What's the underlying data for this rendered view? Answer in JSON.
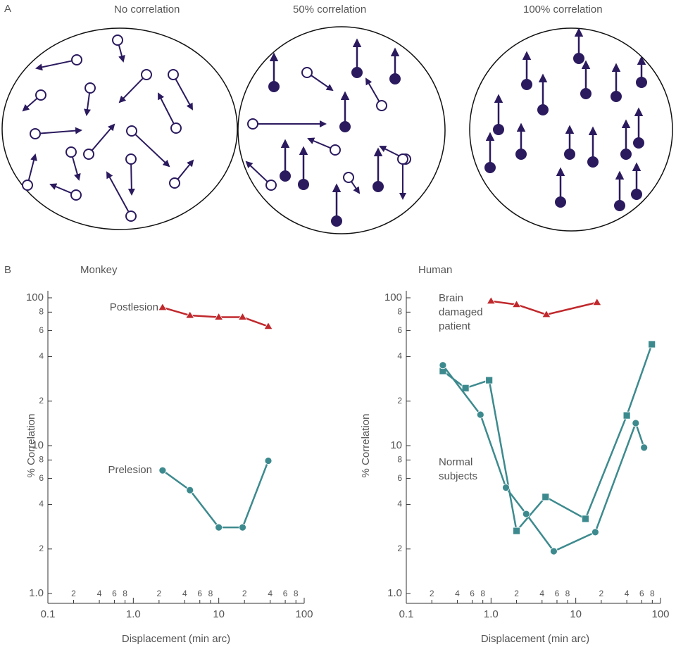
{
  "panel_a": {
    "label": "A",
    "titles": [
      "No correlation",
      "50% correlation",
      "100% correlation"
    ]
  },
  "panel_b": {
    "label": "B"
  },
  "chart_data": [
    {
      "type": "line",
      "title": "Monkey",
      "x_label": "Displacement (min arc)",
      "y_label": "% Correlation",
      "log_x": true,
      "log_y": true,
      "xlim": [
        0.1,
        100
      ],
      "ylim": [
        1,
        100
      ],
      "xticks": [
        0.1,
        {
          "value": 0.2,
          "label": "2"
        },
        {
          "value": 0.4,
          "label": "4"
        },
        {
          "value": 0.6,
          "label": "6"
        },
        {
          "value": 0.8,
          "label": "8"
        },
        {
          "value": 1,
          "label": "1.0"
        },
        2,
        4,
        6,
        8,
        10,
        {
          "value": 20,
          "label": "2"
        },
        {
          "value": 40,
          "label": "4"
        },
        {
          "value": 60,
          "label": "6"
        },
        {
          "value": 80,
          "label": "8"
        },
        100
      ],
      "yticks": [
        {
          "value": 1,
          "label": "1.0"
        },
        2,
        4,
        6,
        8,
        10,
        {
          "value": 20,
          "label": "2"
        },
        {
          "value": 40,
          "label": "4"
        },
        {
          "value": 60,
          "label": "6"
        },
        {
          "value": 80,
          "label": "8"
        },
        100
      ],
      "series": [
        {
          "name": "Postlesion",
          "color": "#c0282c",
          "marker": "triangle",
          "x": [
            2.2,
            4.6,
            10,
            19,
            38
          ],
          "values": [
            86,
            76,
            74,
            74,
            64
          ]
        },
        {
          "name": "Prelesion",
          "color": "#3d8a8e",
          "marker": "circle",
          "x": [
            2.2,
            4.6,
            10,
            19,
            38
          ],
          "values": [
            6.8,
            5.0,
            2.8,
            2.8,
            7.9
          ]
        }
      ]
    },
    {
      "type": "line",
      "title": "Human",
      "x_label": "Displacement (min arc)",
      "y_label": "% Correlation",
      "log_x": true,
      "log_y": true,
      "xlim": [
        0.1,
        100
      ],
      "ylim": [
        1,
        100
      ],
      "xticks": [
        0.1,
        {
          "value": 0.2,
          "label": "2"
        },
        {
          "value": 0.4,
          "label": "4"
        },
        {
          "value": 0.6,
          "label": "6"
        },
        {
          "value": 0.8,
          "label": "8"
        },
        {
          "value": 1,
          "label": "1.0"
        },
        2,
        4,
        6,
        8,
        10,
        {
          "value": 20,
          "label": "2"
        },
        {
          "value": 40,
          "label": "4"
        },
        {
          "value": 60,
          "label": "6"
        },
        {
          "value": 80,
          "label": "8"
        },
        100
      ],
      "yticks": [
        {
          "value": 1,
          "label": "1.0"
        },
        2,
        4,
        6,
        8,
        10,
        {
          "value": 20,
          "label": "2"
        },
        {
          "value": 40,
          "label": "4"
        },
        {
          "value": 60,
          "label": "6"
        },
        {
          "value": 80,
          "label": "8"
        },
        100
      ],
      "series": [
        {
          "name": "Brain damaged patient",
          "color": "#c0282c",
          "marker": "triangle",
          "x": [
            1.0,
            2.0,
            4.5,
            17.8
          ],
          "values": [
            95,
            90,
            77,
            93
          ]
        },
        {
          "name": "Normal subjects",
          "color": "#3d8a8e",
          "marker": "square",
          "x": [
            0.27,
            0.5,
            0.95,
            2.0,
            4.4,
            13,
            40,
            79
          ],
          "values": [
            32,
            24.5,
            27.7,
            2.65,
            4.5,
            3.2,
            16,
            48.5
          ]
        },
        {
          "color": "#3d8a8e",
          "marker": "circle",
          "x": [
            0.27,
            0.75,
            1.5,
            2.6,
            5.5,
            17,
            51,
            64
          ],
          "values": [
            35,
            16.2,
            5.2,
            3.45,
            1.93,
            2.6,
            14.2,
            9.7
          ]
        }
      ]
    }
  ]
}
